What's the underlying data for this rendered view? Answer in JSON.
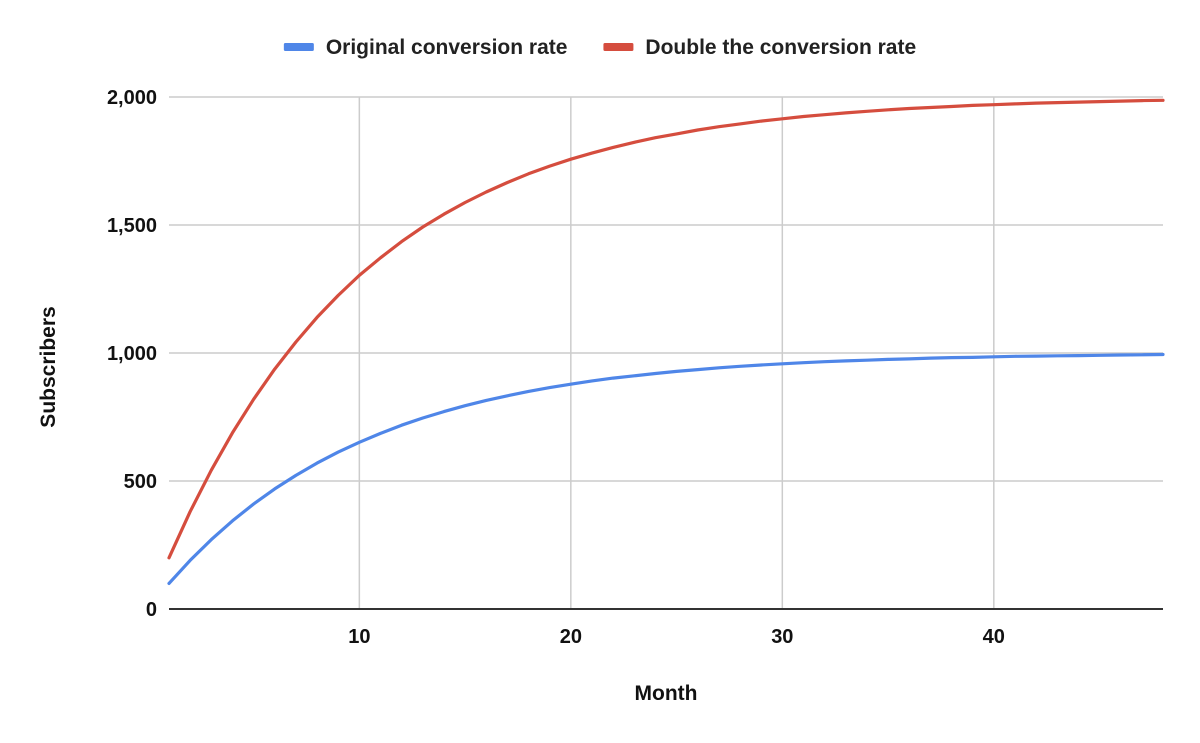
{
  "chart_data": {
    "type": "line",
    "title": "",
    "xlabel": "Month",
    "ylabel": "Subscribers",
    "xlim": [
      1,
      48
    ],
    "ylim": [
      0,
      2000
    ],
    "x_ticks": [
      10,
      20,
      30,
      40
    ],
    "x_tick_labels": [
      "10",
      "20",
      "30",
      "40"
    ],
    "y_ticks": [
      0,
      500,
      1000,
      1500,
      2000
    ],
    "y_tick_labels": [
      "0",
      "500",
      "1,000",
      "1,500",
      "2,000"
    ],
    "grid": true,
    "legend": "top",
    "x": [
      1,
      2,
      3,
      4,
      5,
      6,
      7,
      8,
      9,
      10,
      11,
      12,
      13,
      14,
      15,
      16,
      17,
      18,
      19,
      20,
      21,
      22,
      23,
      24,
      25,
      26,
      27,
      28,
      29,
      30,
      31,
      32,
      33,
      34,
      35,
      36,
      37,
      38,
      39,
      40,
      41,
      42,
      43,
      44,
      45,
      46,
      47,
      48
    ],
    "series": [
      {
        "name": "Original conversion rate",
        "color": "#4f86e8",
        "values": [
          100,
          190,
          271,
          344,
          410,
          469,
          522,
          570,
          613,
          651,
          686,
          718,
          746,
          771,
          794,
          815,
          833,
          850,
          865,
          878,
          891,
          902,
          911,
          920,
          928,
          935,
          942,
          948,
          953,
          958,
          962,
          966,
          969,
          972,
          975,
          977,
          980,
          982,
          983,
          985,
          987,
          988,
          989,
          990,
          991,
          992,
          993,
          994
        ]
      },
      {
        "name": "Double the conversion rate",
        "color": "#d54d3e",
        "values": [
          200,
          380,
          542,
          688,
          819,
          937,
          1043,
          1139,
          1225,
          1303,
          1372,
          1435,
          1492,
          1542,
          1588,
          1629,
          1666,
          1700,
          1730,
          1757,
          1781,
          1803,
          1823,
          1841,
          1856,
          1871,
          1884,
          1895,
          1906,
          1915,
          1924,
          1931,
          1938,
          1944,
          1950,
          1955,
          1959,
          1963,
          1967,
          1970,
          1973,
          1976,
          1978,
          1980,
          1982,
          1984,
          1986,
          1987
        ]
      }
    ]
  },
  "colors": {
    "grid": "#cccccc",
    "axis": "#333333"
  }
}
